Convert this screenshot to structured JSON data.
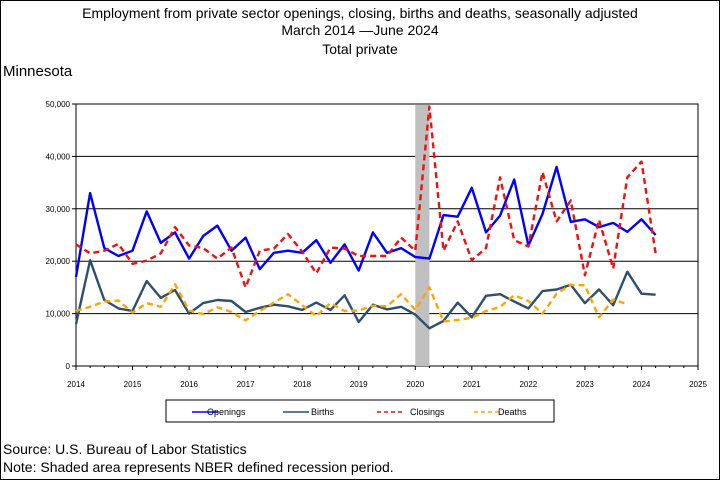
{
  "title": {
    "line1": "Employment from private sector openings, closing, births and deaths, seasonally adjusted",
    "line2": "March 2014  —June 2024",
    "line3": "Total private"
  },
  "region": "Minnesota",
  "footnotes": {
    "source": "Source: U.S. Bureau of Labor Statistics",
    "note": "Note: Shaded area represents NBER defined recession period."
  },
  "chart_data": {
    "type": "line",
    "x_start_year": 2014.0,
    "x_step": 0.25,
    "xlim": [
      2014,
      2025
    ],
    "ylim": [
      0,
      50000
    ],
    "x_ticks": [
      "2014",
      "2015",
      "2016",
      "2017",
      "2018",
      "2019",
      "2020",
      "2021",
      "2022",
      "2023",
      "2024",
      "2025"
    ],
    "y_ticks": [
      "0",
      "10,000",
      "20,000",
      "30,000",
      "40,000",
      "50,000"
    ],
    "recession": {
      "start": 2020.0,
      "end": 2020.25,
      "color": "#c0c0c0"
    },
    "grid_y": true,
    "legend_position": "bottom",
    "series": [
      {
        "name": "Openings",
        "color": "#0000ff",
        "dash": "solid",
        "width": 2.4,
        "values": [
          17000,
          33000,
          22500,
          21000,
          22000,
          29500,
          23500,
          25500,
          20500,
          24800,
          26800,
          22000,
          24500,
          18500,
          21600,
          22000,
          21600,
          24000,
          19700,
          23200,
          18200,
          25500,
          21600,
          22500,
          20800,
          20500,
          28800,
          28500,
          34000,
          25500,
          28700,
          35600,
          23000,
          29000,
          38000,
          27500,
          28000,
          26500,
          27300,
          25600,
          28000,
          25000
        ]
      },
      {
        "name": "Births",
        "color": "#2f4f6f",
        "dash": "solid",
        "width": 2.4,
        "values": [
          8000,
          20200,
          12600,
          11000,
          10500,
          16200,
          13000,
          14500,
          10000,
          12000,
          12600,
          12400,
          10300,
          11100,
          11700,
          11400,
          10700,
          12100,
          10700,
          13500,
          8400,
          11700,
          10800,
          11300,
          9800,
          7200,
          8600,
          12100,
          9300,
          13400,
          13700,
          12300,
          11000,
          14300,
          14600,
          15500,
          12000,
          14600,
          11600,
          18000,
          13800,
          13600
        ]
      },
      {
        "name": "Closings",
        "color": "#ee1111",
        "dash": "6,4",
        "width": 2.4,
        "values": [
          23200,
          21500,
          22000,
          23300,
          19500,
          20100,
          21500,
          26500,
          23000,
          22500,
          20500,
          22600,
          15000,
          22000,
          22400,
          25200,
          21800,
          17700,
          22600,
          22400,
          21000,
          21000,
          21000,
          24500,
          22000,
          49500,
          22000,
          27600,
          20200,
          22500,
          36000,
          24000,
          22800,
          37000,
          27600,
          31600,
          17300,
          27900,
          18600,
          36000,
          39000,
          21500
        ]
      },
      {
        "name": "Deaths",
        "color": "#ffa500",
        "dash": "6,4",
        "width": 2.4,
        "values": [
          10500,
          11300,
          12300,
          12500,
          10200,
          12000,
          11300,
          15600,
          10600,
          9900,
          11200,
          10300,
          8700,
          10500,
          12100,
          13700,
          11600,
          9500,
          12000,
          10500,
          10600,
          11500,
          11400,
          13700,
          10700,
          15000,
          8500,
          8800,
          9200,
          10500,
          11300,
          13500,
          12400,
          10000,
          13800,
          15500,
          15400,
          9300,
          12700,
          11800
        ]
      }
    ]
  }
}
